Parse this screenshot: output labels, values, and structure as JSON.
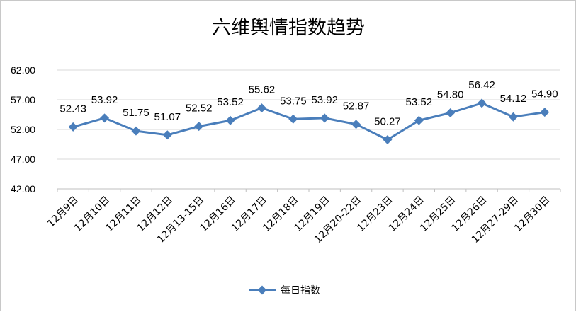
{
  "chart_data": {
    "type": "line",
    "title": "六维舆情指数趋势",
    "categories": [
      "12月9日",
      "12月10日",
      "12月11日",
      "12月12日",
      "12月13-15日",
      "12月16日",
      "12月17日",
      "12月18日",
      "12月19日",
      "12月20-22日",
      "12月23日",
      "12月24日",
      "12月25日",
      "12月26日",
      "12月27-29日",
      "12月30日"
    ],
    "series": [
      {
        "name": "每日指数",
        "values": [
          52.43,
          53.92,
          51.75,
          51.07,
          52.52,
          53.52,
          55.62,
          53.75,
          53.92,
          52.87,
          50.27,
          53.52,
          54.8,
          56.42,
          54.12,
          54.9
        ],
        "labels": [
          "52.43",
          "53.92",
          "51.75",
          "51.07",
          "52.52",
          "53.52",
          "55.62",
          "53.75",
          "53.92",
          "52.87",
          "50.27",
          "53.52",
          "54.80",
          "56.42",
          "54.12",
          "54.90"
        ]
      }
    ],
    "ylim": [
      42,
      62
    ],
    "yticks": [
      "42.00",
      "47.00",
      "52.00",
      "57.00",
      "62.00"
    ],
    "ytick_values": [
      42,
      47,
      52,
      57,
      62
    ],
    "xlabel": "",
    "ylabel": "",
    "grid": true,
    "legend_position": "bottom",
    "colors": {
      "series": "#4a7ebb",
      "grid": "#d9d9d9",
      "axis": "#bfbfbf"
    }
  }
}
